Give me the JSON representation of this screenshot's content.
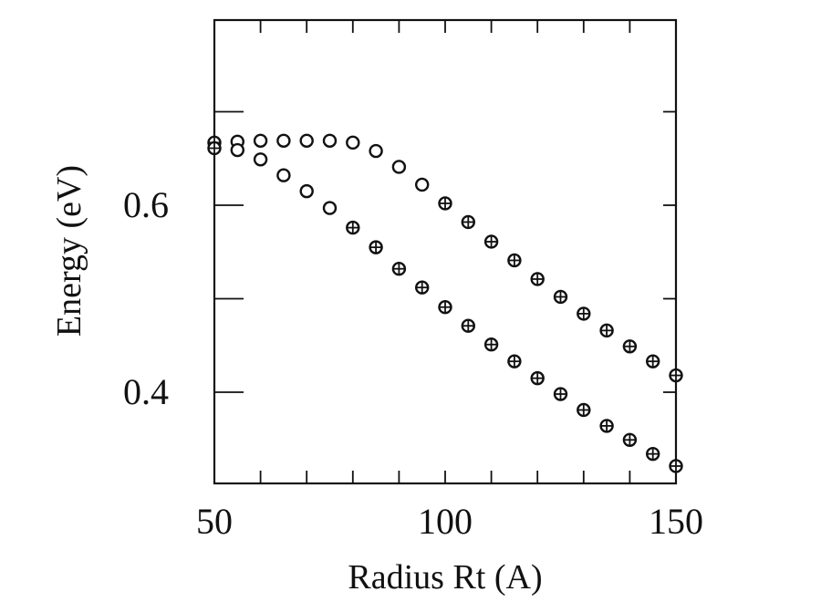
{
  "chart_data": {
    "type": "scatter",
    "xlabel": "Radius Rt (A)",
    "ylabel": "Energy (eV)",
    "xlim": [
      50,
      150
    ],
    "ylim": [
      0.32,
      0.8
    ],
    "x_ticks": [
      50,
      100,
      150
    ],
    "y_ticks": [
      0.4,
      0.6
    ],
    "x_tick_labels": [
      "50",
      "100",
      "150"
    ],
    "y_tick_labels": [
      "0.4",
      "0.6"
    ],
    "grid": false,
    "series": [
      {
        "marker": "open-circle",
        "points": [
          {
            "x": 50,
            "y": 0.667,
            "crossed": true
          },
          {
            "x": 55,
            "y": 0.668,
            "crossed": false
          },
          {
            "x": 60,
            "y": 0.669,
            "crossed": false
          },
          {
            "x": 65,
            "y": 0.669,
            "crossed": false
          },
          {
            "x": 70,
            "y": 0.669,
            "crossed": false
          },
          {
            "x": 75,
            "y": 0.669,
            "crossed": false
          },
          {
            "x": 80,
            "y": 0.667,
            "crossed": false
          },
          {
            "x": 85,
            "y": 0.658,
            "crossed": false
          },
          {
            "x": 90,
            "y": 0.641,
            "crossed": false
          },
          {
            "x": 95,
            "y": 0.622,
            "crossed": false
          },
          {
            "x": 100,
            "y": 0.602,
            "crossed": true
          },
          {
            "x": 105,
            "y": 0.582,
            "crossed": true
          },
          {
            "x": 110,
            "y": 0.561,
            "crossed": true
          },
          {
            "x": 115,
            "y": 0.541,
            "crossed": true
          },
          {
            "x": 120,
            "y": 0.521,
            "crossed": true
          },
          {
            "x": 125,
            "y": 0.502,
            "crossed": true
          },
          {
            "x": 130,
            "y": 0.484,
            "crossed": true
          },
          {
            "x": 135,
            "y": 0.466,
            "crossed": true
          },
          {
            "x": 140,
            "y": 0.449,
            "crossed": true
          },
          {
            "x": 145,
            "y": 0.433,
            "crossed": true
          },
          {
            "x": 150,
            "y": 0.418,
            "crossed": true
          }
        ]
      },
      {
        "marker": "open-circle",
        "points": [
          {
            "x": 50,
            "y": 0.661,
            "crossed": true
          },
          {
            "x": 55,
            "y": 0.659,
            "crossed": false
          },
          {
            "x": 60,
            "y": 0.649,
            "crossed": false
          },
          {
            "x": 65,
            "y": 0.632,
            "crossed": false
          },
          {
            "x": 70,
            "y": 0.615,
            "crossed": false
          },
          {
            "x": 75,
            "y": 0.597,
            "crossed": false
          },
          {
            "x": 80,
            "y": 0.576,
            "crossed": true
          },
          {
            "x": 85,
            "y": 0.555,
            "crossed": true
          },
          {
            "x": 90,
            "y": 0.532,
            "crossed": true
          },
          {
            "x": 95,
            "y": 0.512,
            "crossed": true
          },
          {
            "x": 100,
            "y": 0.491,
            "crossed": true
          },
          {
            "x": 105,
            "y": 0.471,
            "crossed": true
          },
          {
            "x": 110,
            "y": 0.451,
            "crossed": true
          },
          {
            "x": 115,
            "y": 0.433,
            "crossed": true
          },
          {
            "x": 120,
            "y": 0.415,
            "crossed": true
          },
          {
            "x": 125,
            "y": 0.398,
            "crossed": true
          },
          {
            "x": 130,
            "y": 0.381,
            "crossed": true
          },
          {
            "x": 135,
            "y": 0.364,
            "crossed": true
          },
          {
            "x": 140,
            "y": 0.349,
            "crossed": true
          },
          {
            "x": 145,
            "y": 0.334,
            "crossed": true
          },
          {
            "x": 150,
            "y": 0.321,
            "crossed": true
          }
        ]
      }
    ]
  }
}
